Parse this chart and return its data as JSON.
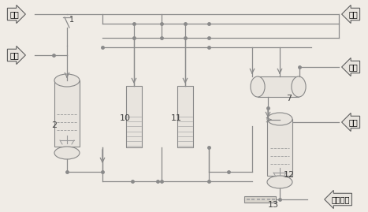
{
  "bg_color": "#f0ece6",
  "line_color": "#8a8a8a",
  "equip_fc": "#e8e4de",
  "equip_ec": "#888888",
  "label_fc": "#e8e4de",
  "label_ec": "#606060",
  "labels": {
    "N2_in": "氮气",
    "ethylene_in": "乙烷",
    "vent": "放空",
    "N2_right1": "氮气",
    "N2_right2": "氮气",
    "out": "去聚合金",
    "eq2": "2",
    "eq10": "10",
    "eq11": "11",
    "eq7": "7",
    "eq12": "12",
    "eq13": "13",
    "eq1": "1"
  },
  "figsize": [
    4.67,
    2.69
  ],
  "dpi": 100
}
